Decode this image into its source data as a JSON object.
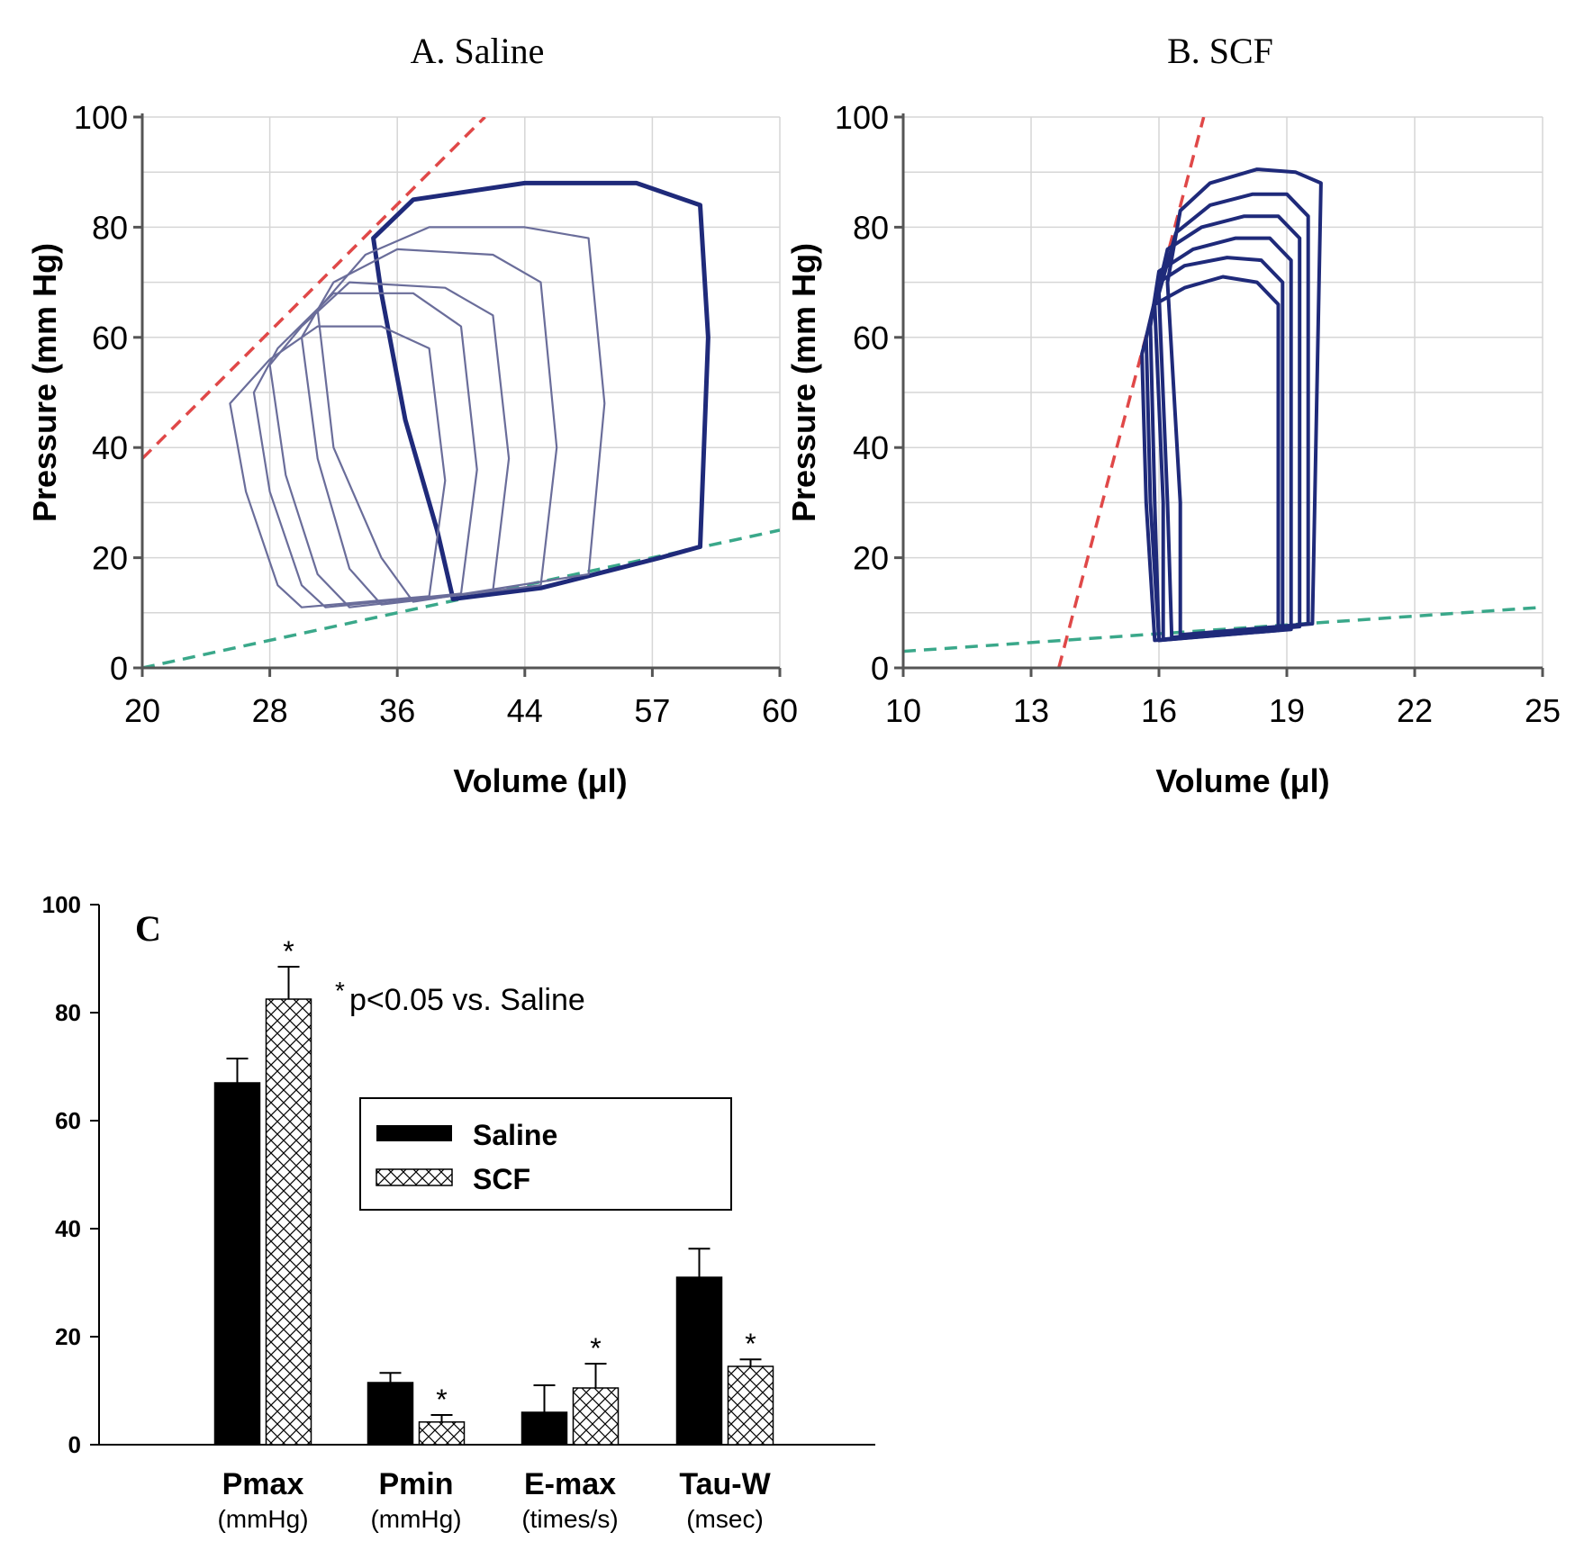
{
  "colors": {
    "grid": "#d6d6d6",
    "loop_light": "#6a6d9a",
    "loop_dark": "#1f2a7a",
    "espvr": "#e04848",
    "edpvr": "#3aa88a",
    "bar_saline": "#000000",
    "bar_scf_hatch": "#000000"
  },
  "chart_data": [
    {
      "type": "line",
      "panel": "A",
      "title": "A. Saline",
      "xlabel": "Volume (μl)",
      "ylabel": "Pressure (mm Hg)",
      "x_tick_labels": [
        "20",
        "28",
        "36",
        "44",
        "57",
        "60"
      ],
      "xlim": [
        20,
        60
      ],
      "y_ticks": [
        0,
        20,
        40,
        60,
        80,
        100
      ],
      "ylim": [
        0,
        100
      ],
      "grid": true,
      "series": [
        {
          "kind": "espvr",
          "x": [
            20,
            41.5
          ],
          "y": [
            38,
            100
          ]
        },
        {
          "kind": "edpvr",
          "x": [
            20,
            60
          ],
          "y": [
            0,
            25
          ]
        },
        {
          "kind": "pv-loop",
          "points": [
            [
              52.5,
              20
            ],
            [
              55,
              22
            ],
            [
              55.5,
              60
            ],
            [
              55,
              84
            ],
            [
              51,
              88
            ],
            [
              44,
              88
            ],
            [
              37,
              85
            ],
            [
              34.5,
              78
            ],
            [
              35,
              68
            ],
            [
              36.5,
              45
            ],
            [
              38.5,
              25
            ],
            [
              39.5,
              12.5
            ],
            [
              45,
              14.5
            ],
            [
              52.5,
              20
            ]
          ]
        },
        {
          "kind": "pv-loop",
          "points": [
            [
              48,
              17
            ],
            [
              49,
              48
            ],
            [
              48,
              78
            ],
            [
              44,
              80
            ],
            [
              38,
              80
            ],
            [
              34,
              75
            ],
            [
              31,
              65
            ],
            [
              32,
              40
            ],
            [
              35,
              20
            ],
            [
              37,
              12
            ],
            [
              48,
              17
            ]
          ]
        },
        {
          "kind": "pv-loop",
          "points": [
            [
              45,
              15
            ],
            [
              46,
              40
            ],
            [
              45,
              70
            ],
            [
              42,
              75
            ],
            [
              36,
              76
            ],
            [
              32,
              70
            ],
            [
              30,
              60
            ],
            [
              31,
              38
            ],
            [
              33,
              18
            ],
            [
              35,
              11.5
            ],
            [
              45,
              15
            ]
          ]
        },
        {
          "kind": "pv-loop",
          "points": [
            [
              42,
              14
            ],
            [
              43,
              38
            ],
            [
              42,
              64
            ],
            [
              39,
              69
            ],
            [
              33,
              70
            ],
            [
              30,
              62
            ],
            [
              28,
              55
            ],
            [
              29,
              35
            ],
            [
              31,
              17
            ],
            [
              33,
              11
            ],
            [
              42,
              14
            ]
          ]
        },
        {
          "kind": "pv-loop",
          "points": [
            [
              40,
              13.5
            ],
            [
              41,
              36
            ],
            [
              40,
              62
            ],
            [
              37,
              68
            ],
            [
              32,
              68
            ],
            [
              28.5,
              58
            ],
            [
              27,
              50
            ],
            [
              28,
              32
            ],
            [
              30,
              15
            ],
            [
              31.5,
              11
            ],
            [
              40,
              13.5
            ]
          ]
        },
        {
          "kind": "pv-loop",
          "points": [
            [
              38,
              13
            ],
            [
              39,
              34
            ],
            [
              38,
              58
            ],
            [
              35,
              62
            ],
            [
              31,
              62
            ],
            [
              28,
              56
            ],
            [
              25.5,
              48
            ],
            [
              26.5,
              32
            ],
            [
              28.5,
              15
            ],
            [
              30,
              11
            ],
            [
              38,
              13
            ]
          ]
        }
      ]
    },
    {
      "type": "line",
      "panel": "B",
      "title": "B. SCF",
      "xlabel": "Volume (μl)",
      "ylabel": "Pressure (mm Hg)",
      "x_ticks": [
        10,
        13,
        16,
        19,
        22,
        25
      ],
      "xlim": [
        10,
        25
      ],
      "y_ticks": [
        0,
        20,
        40,
        60,
        80,
        100
      ],
      "ylim": [
        0,
        100
      ],
      "grid": true,
      "series": [
        {
          "kind": "espvr",
          "x": [
            13.65,
            17.05
          ],
          "y": [
            0,
            100
          ]
        },
        {
          "kind": "edpvr",
          "x": [
            10,
            25
          ],
          "y": [
            3,
            11
          ]
        },
        {
          "kind": "pv-loop",
          "points": [
            [
              19.6,
              8
            ],
            [
              19.8,
              88
            ],
            [
              19.2,
              90
            ],
            [
              18.3,
              90.5
            ],
            [
              17.2,
              88
            ],
            [
              16.5,
              83
            ],
            [
              16.2,
              70
            ],
            [
              16.5,
              30
            ],
            [
              16.5,
              6
            ],
            [
              19.6,
              8
            ]
          ]
        },
        {
          "kind": "pv-loop",
          "points": [
            [
              19.5,
              8
            ],
            [
              19.5,
              82
            ],
            [
              19,
              86
            ],
            [
              18.2,
              86
            ],
            [
              17.2,
              84
            ],
            [
              16.4,
              79
            ],
            [
              16,
              68
            ],
            [
              16.2,
              30
            ],
            [
              16.3,
              5.5
            ],
            [
              19.5,
              8
            ]
          ]
        },
        {
          "kind": "pv-loop",
          "points": [
            [
              19.3,
              7.5
            ],
            [
              19.3,
              78
            ],
            [
              18.8,
              82
            ],
            [
              18,
              82
            ],
            [
              17,
              80
            ],
            [
              16.2,
              76
            ],
            [
              15.9,
              66
            ],
            [
              16.1,
              30
            ],
            [
              16.1,
              5.2
            ],
            [
              19.3,
              7.5
            ]
          ]
        },
        {
          "kind": "pv-loop",
          "points": [
            [
              19.1,
              7
            ],
            [
              19.1,
              74
            ],
            [
              18.6,
              78
            ],
            [
              17.8,
              78
            ],
            [
              16.8,
              76
            ],
            [
              16,
              72
            ],
            [
              15.8,
              62
            ],
            [
              15.9,
              30
            ],
            [
              16,
              5
            ],
            [
              19.1,
              7
            ]
          ]
        },
        {
          "kind": "pv-loop",
          "points": [
            [
              18.9,
              7
            ],
            [
              18.9,
              70
            ],
            [
              18.4,
              74
            ],
            [
              17.6,
              74.5
            ],
            [
              16.6,
              73
            ],
            [
              16,
              70
            ],
            [
              15.7,
              60
            ],
            [
              15.8,
              30
            ],
            [
              16,
              5
            ],
            [
              18.9,
              7
            ]
          ]
        },
        {
          "kind": "pv-loop",
          "points": [
            [
              18.8,
              6.8
            ],
            [
              18.8,
              66
            ],
            [
              18.3,
              70
            ],
            [
              17.5,
              71
            ],
            [
              16.6,
              69
            ],
            [
              15.9,
              66
            ],
            [
              15.6,
              57
            ],
            [
              15.7,
              30
            ],
            [
              15.9,
              5
            ],
            [
              18.8,
              6.8
            ]
          ]
        }
      ]
    },
    {
      "type": "bar",
      "panel": "C",
      "label": "C",
      "ylim": [
        0,
        100
      ],
      "y_ticks": [
        0,
        20,
        40,
        60,
        80,
        100
      ],
      "categories": [
        {
          "name": "Pmax",
          "unit": "(mmHg)"
        },
        {
          "name": "Pmin",
          "unit": "(mmHg)"
        },
        {
          "name": "E-max",
          "unit": "(times/s)"
        },
        {
          "name": "Tau-W",
          "unit": "(msec)"
        }
      ],
      "series": [
        {
          "name": "Saline",
          "values": [
            67,
            11.5,
            6,
            31
          ],
          "errors": [
            4.5,
            1.8,
            5,
            5.3
          ],
          "significant": [
            false,
            false,
            false,
            false
          ]
        },
        {
          "name": "SCF",
          "values": [
            82.5,
            4.2,
            10.5,
            14.5
          ],
          "errors": [
            6,
            1.3,
            4.5,
            1.3
          ],
          "significant": [
            true,
            true,
            true,
            true
          ]
        }
      ],
      "significance_marker": "*",
      "annotation_star": "*",
      "annotation": "p<0.05 vs. Saline",
      "legend_position": "upper-middle"
    }
  ]
}
